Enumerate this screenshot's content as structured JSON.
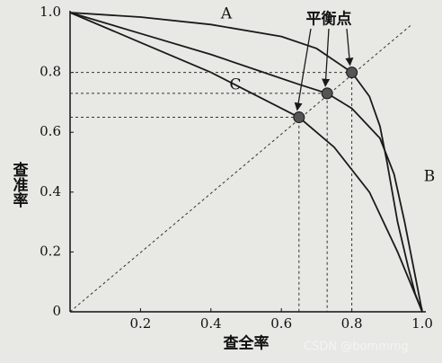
{
  "chart_data": {
    "type": "line",
    "xlabel": "查全率",
    "ylabel": "查准率",
    "xlim": [
      0,
      1
    ],
    "ylim": [
      0,
      1
    ],
    "xticks": [
      0.2,
      0.4,
      0.6,
      0.8,
      {
        "value": 1,
        "label": "1.0"
      }
    ],
    "yticks": [
      0,
      0.2,
      0.4,
      0.6,
      0.8,
      {
        "value": 1,
        "label": "1.0"
      }
    ],
    "color": "#1a1a1a",
    "series": [
      {
        "name": "A",
        "x": [
          0,
          0.2,
          0.4,
          0.6,
          0.7,
          0.8,
          0.85,
          0.88,
          0.9,
          0.93,
          0.96,
          0.98,
          1
        ],
        "values": [
          1,
          0.985,
          0.96,
          0.92,
          0.88,
          0.8,
          0.72,
          0.62,
          0.5,
          0.3,
          0.15,
          0.06,
          0
        ]
      },
      {
        "name": "B",
        "x": [
          0,
          0.2,
          0.4,
          0.55,
          0.65,
          0.73,
          0.8,
          0.88,
          0.92,
          0.95,
          0.98,
          1
        ],
        "values": [
          1,
          0.93,
          0.86,
          0.8,
          0.76,
          0.73,
          0.68,
          0.58,
          0.46,
          0.3,
          0.12,
          0
        ]
      },
      {
        "name": "C",
        "x": [
          0,
          0.2,
          0.4,
          0.5,
          0.6,
          0.65,
          0.75,
          0.85,
          0.93,
          1
        ],
        "values": [
          1,
          0.9,
          0.8,
          0.74,
          0.68,
          0.65,
          0.55,
          0.4,
          0.2,
          0
        ]
      }
    ],
    "balance_points": {
      "name": "平衡点",
      "x": [
        0.65,
        0.73,
        0.8
      ],
      "values": [
        0.65,
        0.73,
        0.8
      ]
    },
    "watermark": "CSDN @bommmg"
  }
}
